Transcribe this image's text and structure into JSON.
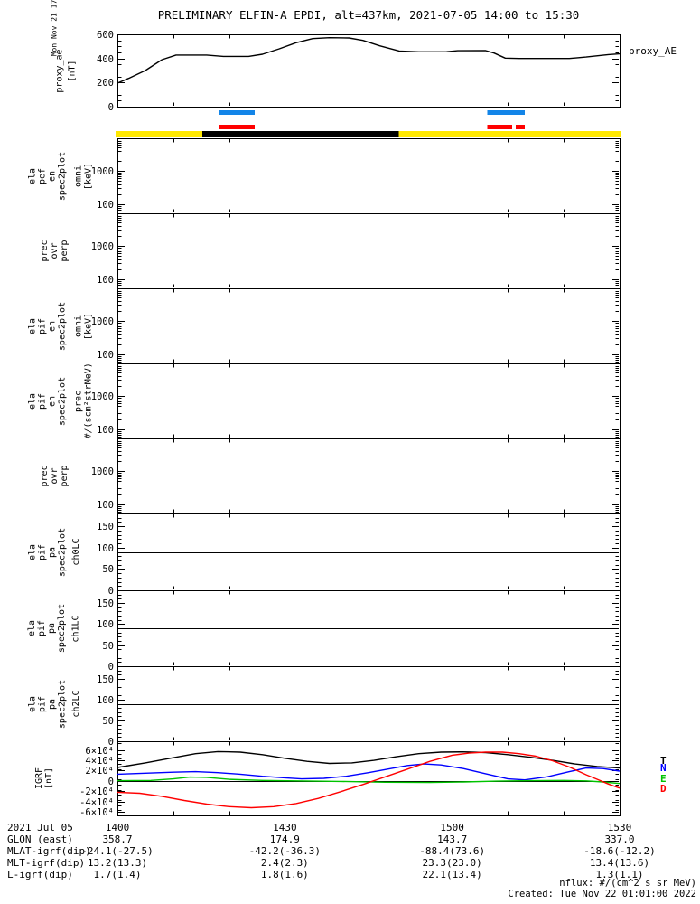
{
  "title": "PRELIMINARY ELFIN-A EPDI, alt=437km, 2021-07-05 14:00 to 15:30",
  "proxy_right_label": "proxy_AE",
  "side_timestamp": "Mon Nov 21 17:01:00 2022",
  "footer": {
    "nflux": "nflux: #/(cm^2 s sr MeV)",
    "created": "Created: Tue Nov 22 01:01:00 2022"
  },
  "bottom_axis": {
    "date_label": "2021 Jul 05",
    "tick_labels": [
      "1400",
      "1430",
      "1500",
      "1530"
    ]
  },
  "ephemeris_rows": [
    {
      "label": "GLON (east)",
      "values": [
        "358.7",
        "174.9",
        "143.7",
        "337.0"
      ]
    },
    {
      "label": "MLAT-igrf(dip)",
      "values": [
        "-24.1(-27.5)",
        "-42.2(-36.3)",
        "-88.4(73.6)",
        "-18.6(-12.2)"
      ]
    },
    {
      "label": "MLT-igrf(dip)",
      "values": [
        "13.2(13.3)",
        "2.4(2.3)",
        "23.3(23.0)",
        "13.4(13.6)"
      ]
    },
    {
      "label": "L-igrf(dip)",
      "values": [
        "1.7(1.4)",
        "1.8(1.6)",
        "22.1(13.4)",
        "1.3(1.1)"
      ]
    }
  ],
  "igrf_legend": [
    {
      "label": "T",
      "color": "#000000"
    },
    {
      "label": "N",
      "color": "#0000ff"
    },
    {
      "label": "E",
      "color": "#00c400"
    },
    {
      "label": "D",
      "color": "#ff0000"
    }
  ],
  "colors": {
    "background": "#ffffff",
    "axis": "#000000",
    "bar_blue": "#1385e8",
    "bar_red": "#ff0000",
    "bar_yellow": "#ffe800",
    "bar_black": "#000000"
  },
  "chart_data": {
    "type": "line",
    "x_axis": {
      "start_label": "1400",
      "end_label": "1530",
      "minutes_span": 90,
      "major_tick_minutes": [
        0,
        30,
        60,
        90
      ],
      "minor_tick_step_minutes": 10
    },
    "panels": [
      {
        "id": "proxy",
        "kind": "linear",
        "ymin": 0,
        "ymax": 600,
        "ytick_values": [
          0,
          200,
          400,
          600
        ],
        "ytick_labels": [
          "0",
          "200",
          "400",
          "600"
        ],
        "yminor_step": 50,
        "label_lines": [
          "proxy_ae"
        ],
        "label_cx": 66,
        "unit_lines": [
          "[nT]"
        ],
        "unit_cx": 80
      },
      {
        "id": "p1",
        "kind": "log",
        "ytick_values": [
          100,
          1000
        ],
        "ytick_labels": [
          "100",
          "1000"
        ],
        "label_lines": [
          "ela",
          "pef",
          "en",
          "spec2plot"
        ],
        "label_cx": 52,
        "unit_lines": [
          "omni",
          "[keV]"
        ],
        "unit_cx": 92
      },
      {
        "id": "p2",
        "kind": "log",
        "ytick_values": [
          100,
          1000
        ],
        "ytick_labels": [
          "100",
          "1000"
        ],
        "label_lines": [
          "prec",
          "ovr",
          "perp"
        ],
        "label_cx": 60
      },
      {
        "id": "p3",
        "kind": "log",
        "ytick_values": [
          100,
          1000
        ],
        "ytick_labels": [
          "100",
          "1000"
        ],
        "label_lines": [
          "ela",
          "pif",
          "en",
          "spec2plot"
        ],
        "label_cx": 52,
        "unit_lines": [
          "omni",
          "[keV]"
        ],
        "unit_cx": 92
      },
      {
        "id": "p4",
        "kind": "log",
        "ytick_values": [
          100,
          1000
        ],
        "ytick_labels": [
          "100",
          "1000"
        ],
        "label_lines": [
          "ela",
          "pif",
          "en",
          "spec2plot"
        ],
        "label_cx": 52,
        "unit_lines": [
          "prec",
          "#/(scm²strMeV)"
        ],
        "unit_cx": 92
      },
      {
        "id": "p5",
        "kind": "log",
        "ytick_values": [
          100,
          1000
        ],
        "ytick_labels": [
          "100",
          "1000"
        ],
        "label_lines": [
          "prec",
          "ovr",
          "perp"
        ],
        "label_cx": 60
      },
      {
        "id": "p6",
        "kind": "linear",
        "ymin": 0,
        "ymax": 180,
        "ytick_values": [
          0,
          50,
          100,
          150
        ],
        "ytick_labels": [
          "0",
          "50",
          "100",
          "150"
        ],
        "yminor_step": 10,
        "hline": 90,
        "label_lines": [
          "ela",
          "pif",
          "pa",
          "spec2plot"
        ],
        "label_cx": 52,
        "unit_lines": [
          "ch0LC"
        ],
        "unit_cx": 84
      },
      {
        "id": "p7",
        "kind": "linear",
        "ymin": 0,
        "ymax": 180,
        "ytick_values": [
          0,
          50,
          100,
          150
        ],
        "ytick_labels": [
          "0",
          "50",
          "100",
          "150"
        ],
        "yminor_step": 10,
        "hline": 90,
        "label_lines": [
          "ela",
          "pif",
          "pa",
          "spec2plot"
        ],
        "label_cx": 52,
        "unit_lines": [
          "ch1LC"
        ],
        "unit_cx": 84
      },
      {
        "id": "p8",
        "kind": "linear",
        "ymin": 0,
        "ymax": 180,
        "ytick_values": [
          0,
          50,
          100,
          150
        ],
        "ytick_labels": [
          "0",
          "50",
          "100",
          "150"
        ],
        "yminor_step": 10,
        "hline": 90,
        "label_lines": [
          "ela",
          "pif",
          "pa",
          "spec2plot"
        ],
        "label_cx": 52,
        "unit_lines": [
          "ch2LC"
        ],
        "unit_cx": 84
      },
      {
        "id": "igrf",
        "kind": "linear",
        "ymin": -67000,
        "ymax": 77000,
        "ytick_values": [
          -60000,
          -40000,
          -20000,
          0,
          20000,
          40000,
          60000
        ],
        "ytick_labels": [
          "-6×10⁴",
          "-4×10⁴",
          "-2×10⁴",
          "0",
          "2×10⁴",
          "4×10⁴",
          "6×10⁴"
        ],
        "yminor_step": 10000,
        "hline": 0,
        "label_lines": [
          "IGRF",
          "[nT]"
        ],
        "label_cx": 49
      }
    ],
    "epoch_bars": {
      "blue": {
        "intervals_min": [
          [
            18.3,
            24.6
          ],
          [
            66.3,
            73.0
          ]
        ]
      },
      "red": {
        "intervals_min": [
          [
            18.3,
            24.6
          ],
          [
            66.3,
            70.7
          ],
          [
            71.4,
            73.0
          ]
        ]
      },
      "epoch_black_interval_min": [
        15.2,
        50.4
      ]
    },
    "series": {
      "proxy_AE": {
        "panel": "proxy",
        "color": "#000000",
        "t": [
          0,
          2,
          5,
          8,
          10.5,
          16,
          19,
          23.5,
          26,
          29,
          32,
          35,
          38,
          41.5,
          44,
          47,
          50.5,
          54,
          59,
          61,
          66,
          67.5,
          69.5,
          72,
          81,
          84,
          88,
          90
        ],
        "v": [
          195,
          235,
          300,
          390,
          428,
          428,
          417,
          417,
          435,
          480,
          530,
          565,
          572,
          570,
          550,
          505,
          462,
          455,
          456,
          464,
          465,
          445,
          403,
          400,
          400,
          412,
          432,
          438
        ]
      },
      "igrf": [
        {
          "name": "T",
          "color": "#000000",
          "t": [
            0,
            5,
            10,
            14,
            18,
            22,
            26,
            30,
            34,
            38,
            42,
            46,
            50,
            54,
            58,
            62,
            66,
            70,
            74,
            78,
            82,
            86,
            90
          ],
          "v": [
            26000,
            35000,
            45000,
            53000,
            57000,
            56000,
            51000,
            44000,
            38000,
            34000,
            35000,
            40000,
            47000,
            53000,
            56000,
            56500,
            55000,
            51000,
            46000,
            40000,
            33000,
            28000,
            25000
          ]
        },
        {
          "name": "N",
          "color": "#0000ff",
          "t": [
            0,
            5,
            10,
            14,
            18,
            22,
            26,
            30,
            33,
            37,
            41,
            45,
            49,
            52,
            55,
            58,
            62,
            66,
            70,
            73,
            77,
            81,
            84,
            87,
            90
          ],
          "v": [
            13000,
            15000,
            17000,
            18000,
            16000,
            13000,
            9000,
            6000,
            4000,
            5000,
            9000,
            16000,
            24000,
            30000,
            33000,
            31000,
            24000,
            14000,
            4000,
            2000,
            8000,
            18000,
            25000,
            24000,
            19000
          ]
        },
        {
          "name": "E",
          "color": "#00c400",
          "t": [
            0,
            6,
            10,
            13,
            16,
            20,
            26,
            32,
            40,
            48,
            56,
            62,
            68,
            74,
            80,
            84,
            87,
            90
          ],
          "v": [
            500,
            1000,
            4000,
            7500,
            7000,
            3000,
            1000,
            0,
            -1000,
            -2500,
            -3000,
            -2000,
            -500,
            500,
            1000,
            0,
            -2000,
            -5000
          ]
        },
        {
          "name": "D",
          "color": "#ff0000",
          "t": [
            0,
            4,
            8,
            12,
            16,
            20,
            24,
            28,
            32,
            36,
            40,
            44,
            48,
            52,
            56,
            60,
            63,
            66,
            69,
            72,
            75,
            78,
            81,
            84,
            86,
            88,
            90
          ],
          "v": [
            -22000,
            -24000,
            -30000,
            -38000,
            -45000,
            -50000,
            -52000,
            -50000,
            -44000,
            -34000,
            -21000,
            -7000,
            8000,
            23000,
            38000,
            50000,
            54000,
            56000,
            56000,
            53000,
            48000,
            39000,
            27000,
            12000,
            3000,
            -6000,
            -14000
          ]
        }
      ]
    }
  }
}
